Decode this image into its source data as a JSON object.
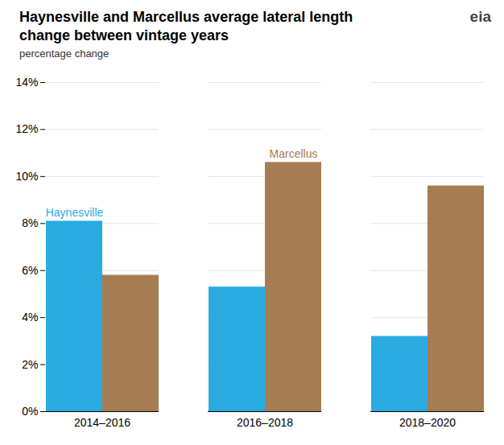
{
  "chart_data": {
    "type": "bar",
    "title": "Haynesville and Marcellus average lateral length\nchange between vintage years",
    "subtitle": "percentage change",
    "annotations": [
      "eia"
    ],
    "categories": [
      "2014–2016",
      "2016–2018",
      "2018–2020"
    ],
    "series": [
      {
        "name": "Haynesville",
        "color": "#29ABE2",
        "values": [
          0.081,
          0.053,
          0.032
        ]
      },
      {
        "name": "Marcellus",
        "color": "#A67C52",
        "values": [
          0.058,
          0.106,
          0.096
        ]
      }
    ],
    "ylim": [
      0,
      0.14
    ],
    "yticks": [
      {
        "value": 0.0,
        "label": "0%"
      },
      {
        "value": 0.02,
        "label": "2%"
      },
      {
        "value": 0.04,
        "label": "4%"
      },
      {
        "value": 0.06,
        "label": "6%"
      },
      {
        "value": 0.08,
        "label": "8%"
      },
      {
        "value": 0.1,
        "label": "10%"
      },
      {
        "value": 0.12,
        "label": "12%"
      },
      {
        "value": 0.14,
        "label": "14%"
      }
    ],
    "grid": true
  }
}
